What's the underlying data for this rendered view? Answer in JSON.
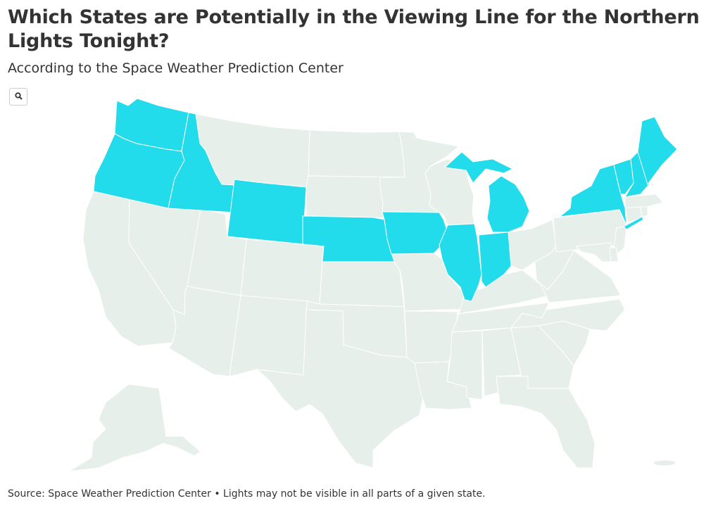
{
  "title": "Which States are Potentially in the Viewing Line for the Northern Lights Tonight?",
  "subtitle": "According to the Space Weather Prediction Center",
  "footer": "Source: Space Weather Prediction Center • Lights may not be visible in all parts of a given state.",
  "colors": {
    "highlighted": "#22dbeb",
    "other": "#e7efea",
    "border": "#ffffff"
  },
  "zoom_button": {
    "icon": "search-icon"
  },
  "map": {
    "highlighted_states": [
      "Washington",
      "Oregon",
      "Idaho",
      "Wyoming",
      "Nebraska",
      "Iowa",
      "Illinois",
      "Indiana",
      "Michigan",
      "New York",
      "Vermont",
      "New Hampshire",
      "Maine"
    ],
    "other_states": [
      "California",
      "Nevada",
      "Utah",
      "Arizona",
      "Montana",
      "Colorado",
      "New Mexico",
      "North Dakota",
      "South Dakota",
      "Kansas",
      "Oklahoma",
      "Texas",
      "Minnesota",
      "Missouri",
      "Arkansas",
      "Louisiana",
      "Wisconsin",
      "Kentucky",
      "Tennessee",
      "Mississippi",
      "Alabama",
      "Ohio",
      "West Virginia",
      "Virginia",
      "North Carolina",
      "South Carolina",
      "Georgia",
      "Florida",
      "Pennsylvania",
      "Maryland",
      "Delaware",
      "New Jersey",
      "Connecticut",
      "Rhode Island",
      "Massachusetts",
      "Alaska",
      "Hawaii"
    ]
  }
}
